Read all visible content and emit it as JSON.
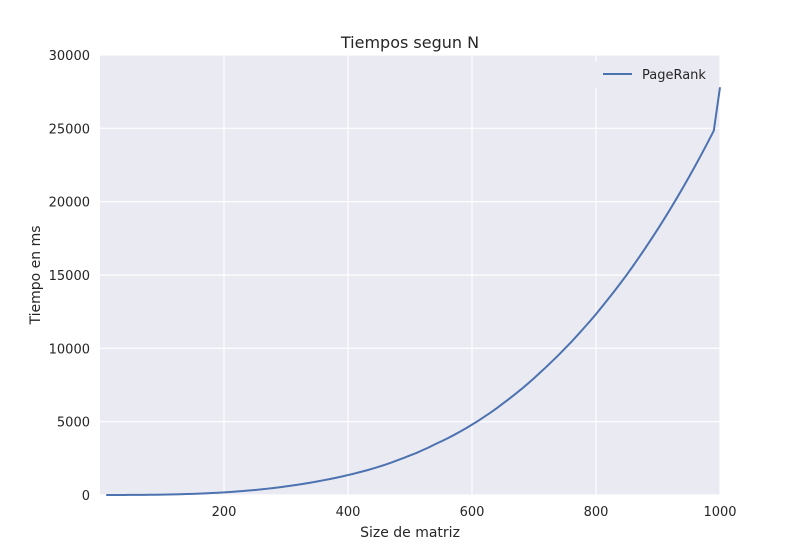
{
  "chart_data": {
    "type": "line",
    "title": "Tiempos segun N",
    "xlabel": "Size de matriz",
    "ylabel": "Tiempo en ms",
    "xlim": [
      0,
      1000
    ],
    "ylim": [
      0,
      30000
    ],
    "xticks": [
      200,
      400,
      600,
      800,
      1000
    ],
    "yticks": [
      0,
      5000,
      10000,
      15000,
      20000,
      25000,
      30000
    ],
    "grid": true,
    "legend_position": "top-right",
    "colors": {
      "background": "#EAEAF2",
      "grid": "#FFFFFF",
      "line": "#4C72B0",
      "text": "#262626"
    },
    "series": [
      {
        "name": "PageRank",
        "x": [
          10,
          20,
          30,
          40,
          50,
          60,
          70,
          80,
          90,
          100,
          110,
          120,
          130,
          140,
          150,
          160,
          170,
          180,
          190,
          200,
          210,
          220,
          230,
          240,
          250,
          260,
          270,
          280,
          290,
          300,
          310,
          320,
          330,
          340,
          350,
          360,
          370,
          380,
          390,
          400,
          410,
          420,
          430,
          440,
          450,
          460,
          470,
          480,
          490,
          500,
          510,
          520,
          530,
          540,
          550,
          560,
          570,
          580,
          590,
          600,
          610,
          620,
          630,
          640,
          650,
          660,
          670,
          680,
          690,
          700,
          710,
          720,
          730,
          740,
          750,
          760,
          770,
          780,
          790,
          800,
          810,
          820,
          830,
          840,
          850,
          860,
          870,
          880,
          890,
          900,
          910,
          920,
          930,
          940,
          950,
          960,
          970,
          980,
          990,
          1000
        ],
        "y": [
          1,
          2,
          3,
          4,
          6,
          8,
          11,
          15,
          20,
          26,
          34,
          43,
          53,
          65,
          80,
          95,
          113,
          133,
          155,
          180,
          207,
          237,
          270,
          305,
          343,
          385,
          430,
          478,
          530,
          585,
          645,
          707,
          775,
          845,
          920,
          1000,
          1080,
          1170,
          1260,
          1360,
          1460,
          1570,
          1680,
          1800,
          1930,
          2070,
          2210,
          2370,
          2530,
          2700,
          2860,
          3050,
          3240,
          3450,
          3650,
          3850,
          4070,
          4300,
          4540,
          4800,
          5060,
          5340,
          5620,
          5920,
          6240,
          6560,
          6890,
          7230,
          7590,
          7960,
          8350,
          8740,
          9150,
          9560,
          9990,
          10430,
          10890,
          11360,
          11840,
          12330,
          12850,
          13380,
          13920,
          14470,
          15040,
          15630,
          16240,
          16860,
          17500,
          18150,
          18820,
          19510,
          20220,
          20940,
          21680,
          22440,
          23220,
          24020,
          24840,
          27800
        ]
      }
    ]
  }
}
